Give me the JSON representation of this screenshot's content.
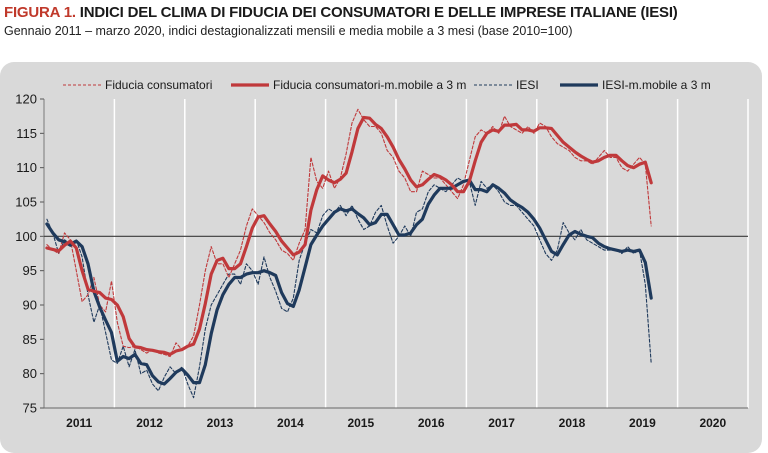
{
  "figure": {
    "label": "FIGURA 1.",
    "title": "INDICI DEL CLIMA DI FIDUCIA DEI CONSUMATORI E DELLE IMPRESE ITALIANE (IESI)",
    "subtitle": "Gennaio 2011 – marzo  2020, indici destagionalizzati mensili e media mobile a 3 mesi (base 2010=100)"
  },
  "colors": {
    "consumers": "#c0393b",
    "iesi": "#1f3a5c",
    "panel": "#d9d9d9",
    "grid": "#ffffff",
    "reference": "#3a3a3a"
  },
  "chart_data": {
    "type": "line",
    "title": "INDICI DEL CLIMA DI FIDUCIA DEI CONSUMATORI E DELLE IMPRESE ITALIANE (IESI)",
    "ylim": [
      75,
      120
    ],
    "yticks": [
      75,
      80,
      85,
      90,
      95,
      100,
      105,
      110,
      115,
      120
    ],
    "x_categories": [
      "2011",
      "2012",
      "2013",
      "2014",
      "2015",
      "2016",
      "2017",
      "2018",
      "2019",
      "2020"
    ],
    "x_start": "2011-01",
    "x_end": "2020-12",
    "reference_line": 100,
    "legend_position": "top",
    "grid": "vertical",
    "series": [
      {
        "name": "Fiducia consumatori",
        "style": "dashed-thin",
        "color": "#c0393b",
        "start": "2011-01",
        "values": [
          98.8,
          98.0,
          97.5,
          100.5,
          99.5,
          95.0,
          90.5,
          91.5,
          94.0,
          90.0,
          89.0,
          93.5,
          87.5,
          84.0,
          83.8,
          84.0,
          83.5,
          83.0,
          83.5,
          83.0,
          82.8,
          82.5,
          84.5,
          83.5,
          84.0,
          85.5,
          90.0,
          95.0,
          98.5,
          96.0,
          96.0,
          94.0,
          96.0,
          98.0,
          101.5,
          104.0,
          103.0,
          102.0,
          100.5,
          99.5,
          98.0,
          97.5,
          96.5,
          99.0,
          101.0,
          111.5,
          108.0,
          107.0,
          109.5,
          107.0,
          108.5,
          112.0,
          116.5,
          118.5,
          117.0,
          116.0,
          116.0,
          115.0,
          112.5,
          111.5,
          109.5,
          108.5,
          106.5,
          106.5,
          109.5,
          109.0,
          108.5,
          108.5,
          107.5,
          106.5,
          105.5,
          107.5,
          111.0,
          114.5,
          115.5,
          115.0,
          116.0,
          115.0,
          117.5,
          116.0,
          115.5,
          115.0,
          116.0,
          115.0,
          116.5,
          116.0,
          114.5,
          113.5,
          113.0,
          112.5,
          111.5,
          111.0,
          111.0,
          110.5,
          111.5,
          112.5,
          111.5,
          111.5,
          110.0,
          109.5,
          110.5,
          111.5,
          110.5,
          101.5
        ]
      },
      {
        "name": "Fiducia consumatori-m.mobile a 3 m",
        "style": "solid-thick",
        "color": "#c0393b",
        "start": "2011-01",
        "values": [
          98.3,
          98.1,
          97.9,
          98.7,
          99.3,
          98.3,
          95.0,
          92.3,
          92.0,
          91.8,
          91.0,
          90.8,
          90.0,
          88.3,
          85.1,
          83.9,
          83.8,
          83.5,
          83.4,
          83.2,
          83.1,
          82.8,
          83.3,
          83.5,
          84.0,
          84.3,
          86.5,
          90.2,
          94.5,
          96.5,
          96.8,
          95.3,
          95.3,
          96.0,
          98.5,
          101.2,
          102.8,
          103.0,
          101.8,
          100.7,
          99.3,
          98.3,
          97.3,
          97.7,
          98.8,
          103.8,
          106.8,
          108.8,
          108.2,
          107.8,
          108.3,
          109.2,
          112.3,
          115.7,
          117.3,
          117.2,
          116.3,
          115.7,
          114.5,
          113.0,
          111.2,
          109.8,
          108.2,
          107.2,
          107.5,
          108.3,
          109.0,
          108.7,
          108.2,
          107.5,
          106.5,
          106.5,
          108.0,
          111.0,
          113.7,
          115.0,
          115.5,
          115.3,
          116.2,
          116.2,
          116.3,
          115.5,
          115.5,
          115.3,
          115.8,
          115.8,
          115.7,
          114.7,
          113.7,
          113.0,
          112.3,
          111.7,
          111.2,
          110.8,
          111.0,
          111.5,
          111.8,
          111.8,
          111.0,
          110.3,
          110.0,
          110.5,
          110.8,
          107.8
        ]
      },
      {
        "name": "IESI",
        "style": "dashed-thin",
        "color": "#1f3a5c",
        "start": "2011-01",
        "values": [
          102.5,
          100.5,
          97.5,
          99.5,
          99.0,
          99.5,
          97.0,
          91.5,
          87.5,
          90.0,
          86.0,
          82.0,
          81.5,
          84.0,
          81.0,
          83.5,
          80.0,
          80.5,
          78.5,
          77.5,
          79.5,
          81.0,
          80.0,
          81.0,
          78.5,
          76.5,
          81.0,
          86.5,
          90.0,
          91.5,
          93.0,
          94.5,
          94.5,
          93.0,
          96.0,
          95.0,
          93.0,
          97.0,
          94.0,
          92.0,
          89.5,
          89.0,
          91.0,
          96.5,
          99.0,
          101.0,
          100.5,
          103.0,
          104.0,
          103.5,
          104.5,
          103.0,
          104.5,
          102.5,
          101.0,
          101.5,
          103.5,
          104.5,
          101.5,
          99.0,
          100.0,
          101.5,
          100.0,
          103.5,
          104.0,
          106.5,
          107.5,
          107.0,
          106.5,
          107.5,
          108.5,
          108.0,
          108.0,
          104.5,
          108.0,
          107.0,
          107.5,
          106.5,
          105.0,
          104.5,
          104.5,
          103.5,
          102.5,
          101.5,
          99.5,
          97.5,
          96.5,
          98.0,
          102.0,
          100.5,
          99.5,
          101.0,
          99.5,
          99.0,
          98.5,
          98.0,
          98.0,
          98.0,
          97.5,
          98.5,
          97.5,
          98.0,
          93.0,
          81.5
        ]
      },
      {
        "name": "IESI-m.mobile a 3 m",
        "style": "solid-thick",
        "color": "#1f3a5c",
        "start": "2011-01",
        "values": [
          101.8,
          100.5,
          99.5,
          99.2,
          98.7,
          99.3,
          98.5,
          96.0,
          92.0,
          89.7,
          87.8,
          86.0,
          81.8,
          82.5,
          82.2,
          82.8,
          81.5,
          81.3,
          79.7,
          78.8,
          78.5,
          79.3,
          80.2,
          80.7,
          79.8,
          78.7,
          78.7,
          81.3,
          85.8,
          89.3,
          91.5,
          93.0,
          94.0,
          94.0,
          94.5,
          94.7,
          94.7,
          95.0,
          94.7,
          94.3,
          91.8,
          90.2,
          89.8,
          92.2,
          95.5,
          98.8,
          100.2,
          101.5,
          102.5,
          103.5,
          104.0,
          103.7,
          104.0,
          103.3,
          102.7,
          101.7,
          102.0,
          103.2,
          103.2,
          101.7,
          100.2,
          100.2,
          100.5,
          101.7,
          102.5,
          104.7,
          106.0,
          107.0,
          107.0,
          107.0,
          107.5,
          108.0,
          108.2,
          106.8,
          106.8,
          106.5,
          107.5,
          107.0,
          106.3,
          105.3,
          104.7,
          104.2,
          103.5,
          102.5,
          101.2,
          99.5,
          97.8,
          97.3,
          98.8,
          100.2,
          100.7,
          100.3,
          100.0,
          99.8,
          99.0,
          98.5,
          98.2,
          98.0,
          97.8,
          98.0,
          97.8,
          98.0,
          96.2,
          91.0
        ]
      }
    ]
  }
}
